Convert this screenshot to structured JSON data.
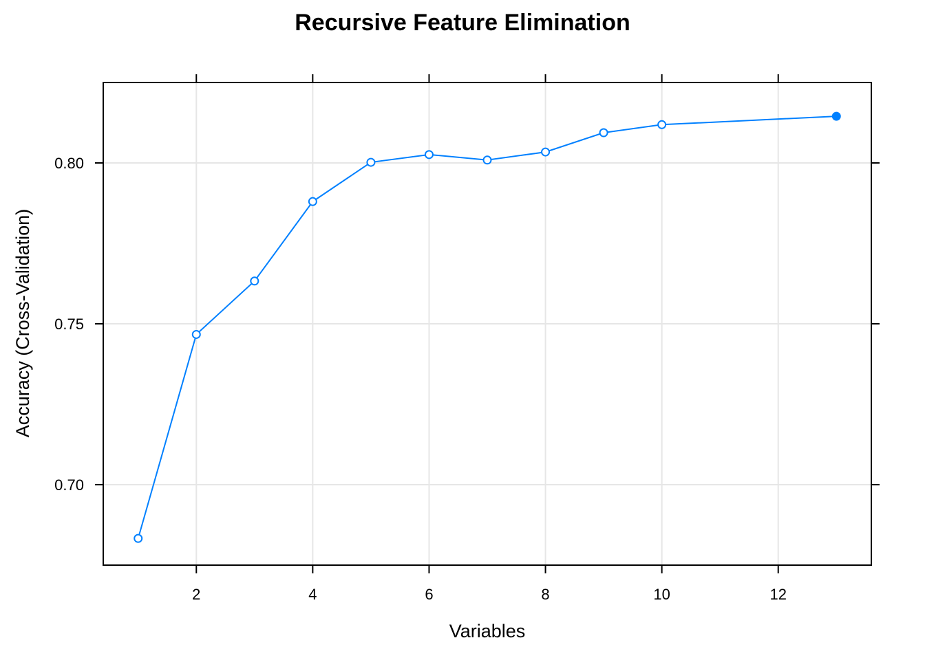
{
  "chart_data": {
    "type": "line",
    "title": "Recursive Feature Elimination",
    "xlabel": "Variables",
    "ylabel": "Accuracy (Cross-Validation)",
    "xlim": [
      0.4,
      13.6
    ],
    "ylim": [
      0.675,
      0.825
    ],
    "xticks": [
      2,
      4,
      6,
      8,
      10,
      12
    ],
    "yticks": [
      0.7,
      0.75,
      0.8
    ],
    "grid": true,
    "color": "#0080ff",
    "series": [
      {
        "x": [
          1,
          2,
          3,
          4,
          5,
          6,
          7,
          8,
          9,
          10,
          13
        ],
        "values": [
          0.6833,
          0.7467,
          0.7633,
          0.788,
          0.8002,
          0.8026,
          0.8009,
          0.8034,
          0.8094,
          0.8119,
          0.8145
        ]
      }
    ],
    "highlight_x": 13
  }
}
